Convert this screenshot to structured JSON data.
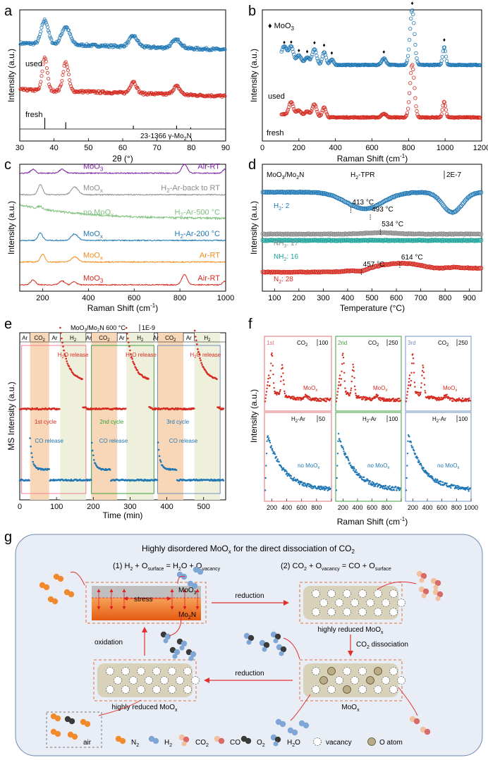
{
  "panel_letters": {
    "a": "a",
    "b": "b",
    "c": "c",
    "d": "d",
    "e": "e",
    "f": "f",
    "g": "g"
  },
  "colors": {
    "red": "#d42a20",
    "blue": "#1f77b4",
    "purple": "#7b1fa2",
    "gray": "#8c8c8c",
    "green": "#7fbf7f",
    "orange": "#f28c1c",
    "teal": "#1aa39a",
    "co2band": "#f7d7b8",
    "h2band": "#eef0dc",
    "peach": "#f28a5c",
    "panel_bg": "#e9eef6"
  },
  "chart_data": [
    {
      "id": "a",
      "type": "line",
      "xlabel": "2θ (°)",
      "ylabel": "Intensity (a.u.)",
      "xlim": [
        30,
        90
      ],
      "xticks": [
        "30",
        "40",
        "50",
        "60",
        "70",
        "80",
        "90"
      ],
      "series": [
        {
          "name": "used",
          "label": "used",
          "color": "#1f77b4",
          "baseline": 0.72,
          "peaks": [
            [
              37.3,
              0.2,
              1.0
            ],
            [
              43.4,
              0.15,
              1.2
            ],
            [
              63.1,
              0.09,
              1.2
            ],
            [
              75.7,
              0.07,
              1.3
            ]
          ]
        },
        {
          "name": "fresh",
          "label": "fresh",
          "color": "#d42a20",
          "baseline": 0.33,
          "peaks": [
            [
              37.3,
              0.28,
              0.7
            ],
            [
              43.4,
              0.24,
              0.8
            ],
            [
              63.1,
              0.1,
              0.9
            ],
            [
              75.7,
              0.07,
              1.0
            ]
          ]
        }
      ],
      "reference": {
        "label": "23-1366 γ-Mo",
        "label_sub": "2",
        "label_end": "N",
        "sticks": [
          [
            37.3,
            1.0
          ],
          [
            43.4,
            0.6
          ],
          [
            63.1,
            0.3
          ],
          [
            75.7,
            0.3
          ],
          [
            79.8,
            0.15
          ]
        ]
      }
    },
    {
      "id": "b",
      "type": "line",
      "xlabel": "Raman Shift (cm",
      "xlabel_sup": "-1",
      "xlabel_end": ")",
      "ylabel": "Intensity (a.u.)",
      "xlim": [
        0,
        1200
      ],
      "xticks": [
        "0",
        "200",
        "400",
        "600",
        "800",
        "1000",
        "1200"
      ],
      "legend": "♦ MoO",
      "legend_sub": "3",
      "series": [
        {
          "name": "used",
          "label": "used",
          "color": "#1f77b4",
          "baseline": 0.58,
          "peaks": [
            [
              120,
              0.12,
              15
            ],
            [
              158,
              0.12,
              12
            ],
            [
              200,
              0.06,
              12
            ],
            [
              245,
              0.05,
              12
            ],
            [
              285,
              0.12,
              12
            ],
            [
              338,
              0.1,
              10
            ],
            [
              380,
              0.04,
              10
            ],
            [
              665,
              0.05,
              12
            ],
            [
              820,
              0.42,
              12
            ],
            [
              995,
              0.14,
              8
            ]
          ]
        },
        {
          "name": "fresh",
          "label": "fresh",
          "color": "#d42a20",
          "baseline": 0.18,
          "peaks": [
            [
              158,
              0.1,
              12
            ],
            [
              200,
              0.04,
              12
            ],
            [
              245,
              0.04,
              12
            ],
            [
              285,
              0.1,
              12
            ],
            [
              338,
              0.08,
              10
            ],
            [
              665,
              0.03,
              12
            ],
            [
              820,
              0.4,
              12
            ],
            [
              995,
              0.12,
              8
            ]
          ]
        }
      ],
      "markers": [
        120,
        158,
        200,
        245,
        285,
        338,
        380,
        665,
        820,
        995
      ]
    },
    {
      "id": "c",
      "type": "line",
      "xlabel": "Raman Shift (cm",
      "xlabel_sup": "-1",
      "xlabel_end": ")",
      "ylabel": "Intensity (a.u.)",
      "xlim": [
        100,
        1000
      ],
      "xticks": [
        "200",
        "400",
        "600",
        "800",
        "1000"
      ],
      "series": [
        {
          "name": "MoO3 Air-RT top",
          "label": "MoO",
          "label_sub": "3",
          "right": "Air-RT",
          "color": "#7b1fa2",
          "baseline": 0.93,
          "peaks": [
            [
              158,
              0.03,
              10
            ],
            [
              285,
              0.03,
              12
            ],
            [
              820,
              0.07,
              12
            ],
            [
              995,
              0.03,
              8
            ]
          ]
        },
        {
          "name": "MoOx back to RT",
          "label": "MoO",
          "label_sub": "x",
          "right": "H",
          "right_sub": "2",
          "right_end": "-Ar-back to RT",
          "color": "#8c8c8c",
          "baseline": 0.76,
          "peaks": [
            [
              190,
              0.08,
              10
            ],
            [
              340,
              0.06,
              15
            ]
          ]
        },
        {
          "name": "no MoOx 500",
          "label": "no MoO",
          "label_sub": "x",
          "right": "H",
          "right_sub": "2",
          "right_end": "-Ar-500 °C",
          "color": "#7fbf7f",
          "baseline": 0.57,
          "decay": 0.1,
          "peaks": [
            [
              190,
              0.02,
              10
            ]
          ]
        },
        {
          "name": "MoOx 200",
          "label": "MoO",
          "label_sub": "x",
          "right": "H",
          "right_sub": "2",
          "right_end": "-Ar-200 °C",
          "color": "#1f77b4",
          "baseline": 0.4,
          "peaks": [
            [
              190,
              0.06,
              10
            ],
            [
              340,
              0.05,
              15
            ]
          ]
        },
        {
          "name": "MoOx Ar-RT",
          "label": "MoO",
          "label_sub": "x",
          "right": "Ar-RT",
          "color": "#f28c1c",
          "baseline": 0.23,
          "peaks": [
            [
              200,
              0.06,
              10
            ],
            [
              340,
              0.04,
              15
            ]
          ]
        },
        {
          "name": "MoO3 Air-RT bottom",
          "label": "MoO",
          "label_sub": "3",
          "right": "Air-RT",
          "color": "#d42a20",
          "baseline": 0.05,
          "peaks": [
            [
              158,
              0.04,
              10
            ],
            [
              285,
              0.03,
              12
            ],
            [
              338,
              0.025,
              10
            ],
            [
              820,
              0.08,
              12
            ],
            [
              995,
              0.03,
              8
            ]
          ]
        }
      ]
    },
    {
      "id": "d",
      "type": "scatter",
      "title": "H",
      "title_sub": "2",
      "title_end": "-TPR",
      "subject": "MoO",
      "subject_sub": "3",
      "subject_end": "/Mo",
      "subject_sub2": "2",
      "subject_end2": "N",
      "scale": "2E-7",
      "xlabel": "Temperature (°C)",
      "ylabel": "Intensity (a.u.)",
      "xlim": [
        50,
        950
      ],
      "xticks": [
        "100",
        "200",
        "300",
        "400",
        "500",
        "600",
        "700",
        "800",
        "900"
      ],
      "series": [
        {
          "name": "H2: 2",
          "label": "H",
          "label_sub": "2",
          "label_end": ": 2",
          "color": "#1f77b4"
        },
        {
          "name": "NH3: 17",
          "label": "NH",
          "label_sub": "3",
          "label_end": ": 17",
          "color": "#8c8c8c"
        },
        {
          "name": "NH2: 16",
          "label": "NH",
          "label_sub": "2",
          "label_end": ": 16",
          "color": "#1aa39a"
        },
        {
          "name": "N2: 28",
          "label": "N",
          "label_sub": "2",
          "label_end": ": 28",
          "color": "#d42a20"
        }
      ],
      "annotations": [
        {
          "text": "413 °C",
          "x": 413
        },
        {
          "text": "493 °C",
          "x": 493
        },
        {
          "text": "534 °C",
          "x": 534
        },
        {
          "text": "457 °C",
          "x": 457
        },
        {
          "text": "614 °C",
          "x": 614
        }
      ]
    },
    {
      "id": "e",
      "type": "line",
      "title": "MoO",
      "title_sub": "3",
      "title_end": "/Mo",
      "title_sub2": "2",
      "title_end2": "N  600 °C",
      "scale": "1E-9",
      "xlabel": "Time (min)",
      "ylabel": "MS Intensity (a.u.)",
      "xlim": [
        0,
        560
      ],
      "xticks": [
        "0",
        "100",
        "200",
        "300",
        "400",
        "500"
      ],
      "segments": [
        "Ar",
        "CO",
        "Ar",
        "H",
        "Ar",
        "CO",
        "Ar",
        "H",
        "Ar",
        "CO",
        "Ar",
        "H"
      ],
      "segment_subs": [
        "",
        "2",
        "",
        "2",
        "",
        "2",
        "",
        "2",
        "",
        "2",
        "",
        "2"
      ],
      "cycles": [
        "1st cycle",
        "2nd cycle",
        "3rd cycle"
      ],
      "h2o_label": "H",
      "h2o_sub": "2",
      "h2o_end": "O release",
      "co_label": "CO release"
    },
    {
      "id": "f",
      "type": "scatter",
      "xlabel": "Raman Shift (cm",
      "xlabel_sup": "-1",
      "xlabel_end": ")",
      "ylabel": "Intensity (a.u.)",
      "columns": [
        {
          "cycle": "1st",
          "gas": "CO",
          "gas_sub": "2",
          "scale_top": "100",
          "scale_bot": "50",
          "label_top": "MoO",
          "label_top_sub": "x",
          "label_bot": "no MoO",
          "label_bot_sub": "x",
          "bot_gas": "H",
          "bot_gas_sub": "2",
          "bot_gas_end": "-Ar",
          "xticks": [
            "200",
            "400",
            "600",
            "800",
            "1000"
          ]
        },
        {
          "cycle": "2nd",
          "gas": "CO",
          "gas_sub": "2",
          "scale_top": "250",
          "scale_bot": "100",
          "label_top": "MoO",
          "label_top_sub": "x",
          "label_bot": "no MoO",
          "label_bot_sub": "x",
          "bot_gas": "H",
          "bot_gas_sub": "2",
          "bot_gas_end": "-Ar",
          "xticks": [
            "200",
            "400",
            "600",
            "800",
            "1000"
          ]
        },
        {
          "cycle": "3rd",
          "gas": "CO",
          "gas_sub": "2",
          "scale_top": "250",
          "scale_bot": "100",
          "label_top": "MoO",
          "label_top_sub": "x",
          "label_bot": "no MoO",
          "label_bot_sub": "x",
          "bot_gas": "H",
          "bot_gas_sub": "2",
          "bot_gas_end": "-Ar",
          "xticks": [
            "200",
            "400",
            "600",
            "800",
            "1000"
          ]
        }
      ]
    }
  ],
  "schematic": {
    "title": "Highly disordered MoO",
    "title_sub": "x",
    "title_end": " for the direct dissociation of CO",
    "title_sub2": "2",
    "eq1": {
      "p1": "(1) H",
      "s1": "2",
      "p2": " + O",
      "s2": "surface",
      "p3": " = H",
      "s3": "2",
      "p4": "O + O",
      "s4": "vacancy"
    },
    "eq2": {
      "p1": "(2) CO",
      "s1": "2",
      "p2": " + O",
      "s2": "vacancy",
      "p3": " = CO + O",
      "s3": "surface"
    },
    "stress": "stress",
    "moo3": "MoO",
    "moo3_sub": "3",
    "mo2n": "Mo",
    "mo2n_sub": "2",
    "mo2n_end": "N",
    "reduction": "reduction",
    "oxidation": "oxidation",
    "co2_diss": "CO",
    "co2_diss_sub": "2",
    "co2_diss_end": " dissociation",
    "hr1": "highly reduced MoO",
    "hr1_sub": "x",
    "hr2": "highly reduced MoO",
    "hr2_sub": "x",
    "moox": "MoO",
    "moox_sub": "x",
    "air": "air",
    "legend": {
      "n2": "N",
      "n2s": "2",
      "h2": "H",
      "h2s": "2",
      "co2": "CO",
      "co2s": "2",
      "co": "CO",
      "o2": "O",
      "o2s": "2",
      "h2o": "H",
      "h2os": "2",
      "h2oe": "O",
      "vac": "vacancy",
      "oatom": "O atom"
    }
  }
}
